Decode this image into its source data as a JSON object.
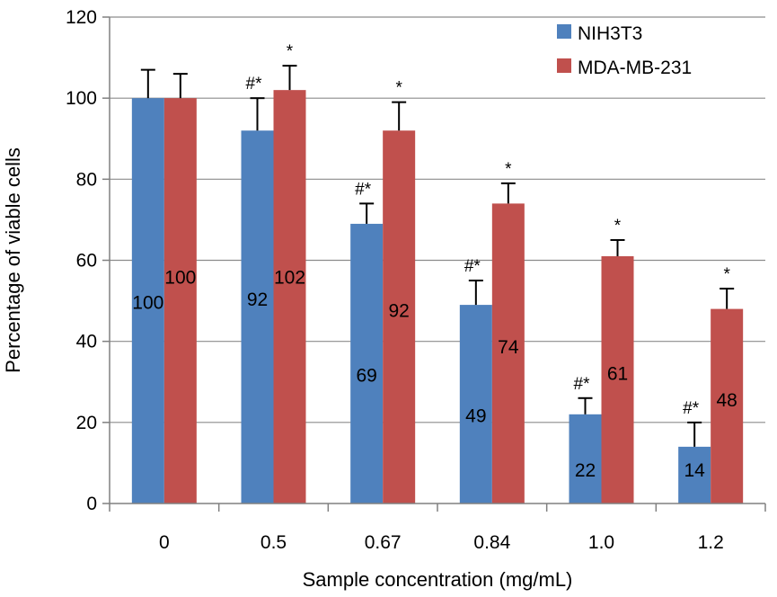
{
  "chart_data": {
    "type": "bar",
    "title": "",
    "xlabel": "Sample concentration (mg/mL)",
    "ylabel": "Percentage of viable cells",
    "ylim": [
      0,
      120
    ],
    "yticks": [
      0,
      20,
      40,
      60,
      80,
      100,
      120
    ],
    "categories": [
      "0",
      "0.5",
      "0.67",
      "0.84",
      "1.0",
      "1.2"
    ],
    "legend_position": "top-right",
    "grid": true,
    "series": [
      {
        "name": "NIH3T3",
        "color": "#4f81bd",
        "values": [
          100,
          92,
          69,
          49,
          22,
          14
        ],
        "labels": [
          "100",
          "92",
          "69",
          "49",
          "22",
          "14"
        ],
        "errors": [
          7,
          8,
          5,
          6,
          4,
          6
        ],
        "significance": [
          "",
          "#*",
          "#*",
          "#*",
          "#*",
          "#*"
        ]
      },
      {
        "name": "MDA-MB-231",
        "color": "#c0504d",
        "values": [
          100,
          102,
          92,
          74,
          61,
          48
        ],
        "labels": [
          "100",
          "102",
          "92",
          "74",
          "61",
          "48"
        ],
        "errors": [
          6,
          6,
          7,
          5,
          4,
          5
        ],
        "significance": [
          "",
          "*",
          "*",
          "*",
          "*",
          "*"
        ]
      }
    ]
  }
}
